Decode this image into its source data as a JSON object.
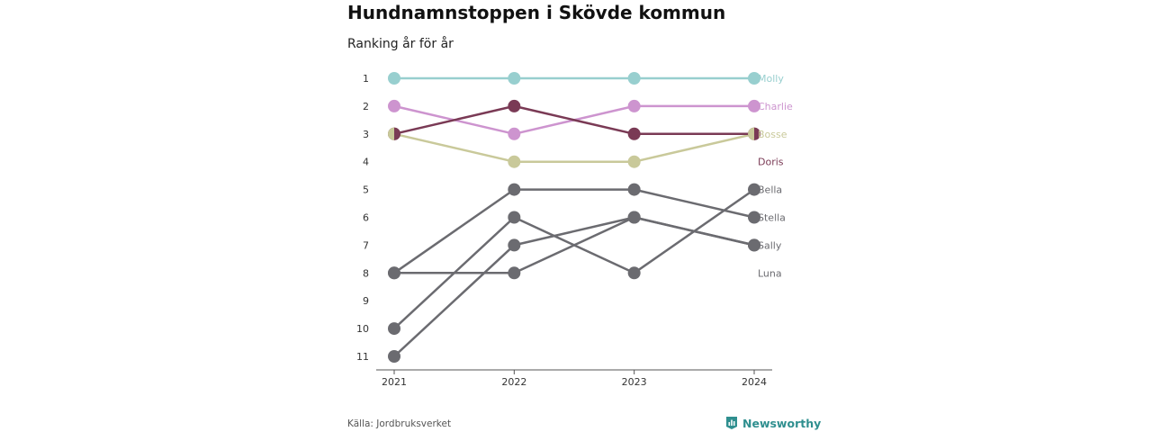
{
  "title": "Hundnamnstoppen i Skövde kommun",
  "subtitle": "Ranking år för år",
  "source": "Källa: Jordbruksverket",
  "brand": {
    "name": "Newsworthy",
    "color": "#2f8f8f"
  },
  "chart_data": {
    "type": "line",
    "title": "Hundnamnstoppen i Skövde kommun",
    "subtitle": "Ranking år för år",
    "x": [
      "2021",
      "2022",
      "2023",
      "2024"
    ],
    "y_ticks": [
      1,
      2,
      3,
      4,
      5,
      6,
      7,
      8,
      9,
      10,
      11
    ],
    "ylim": [
      1,
      11
    ],
    "y_reversed": true,
    "grid": false,
    "series": [
      {
        "name": "Molly",
        "color": "#98cfcf",
        "values": [
          1,
          1,
          1,
          1
        ]
      },
      {
        "name": "Charlie",
        "color": "#cd94cf",
        "values": [
          2,
          3,
          2,
          2
        ]
      },
      {
        "name": "Bosse",
        "color": "#c9c99a",
        "values": [
          3,
          4,
          4,
          3
        ]
      },
      {
        "name": "Doris",
        "color": "#7a3a55",
        "values": [
          3,
          2,
          3,
          3
        ]
      },
      {
        "name": "Stella",
        "color": "#6b6b70",
        "values": [
          8,
          5,
          5,
          6
        ]
      },
      {
        "name": "Bella",
        "color": "#6b6b70",
        "values": [
          10,
          6,
          8,
          5
        ]
      },
      {
        "name": "Sally",
        "color": "#6b6b70",
        "values": [
          11,
          7,
          6,
          7
        ]
      },
      {
        "name": "Luna",
        "color": "#6b6b70",
        "values": [
          8,
          8,
          6,
          7
        ]
      }
    ]
  }
}
